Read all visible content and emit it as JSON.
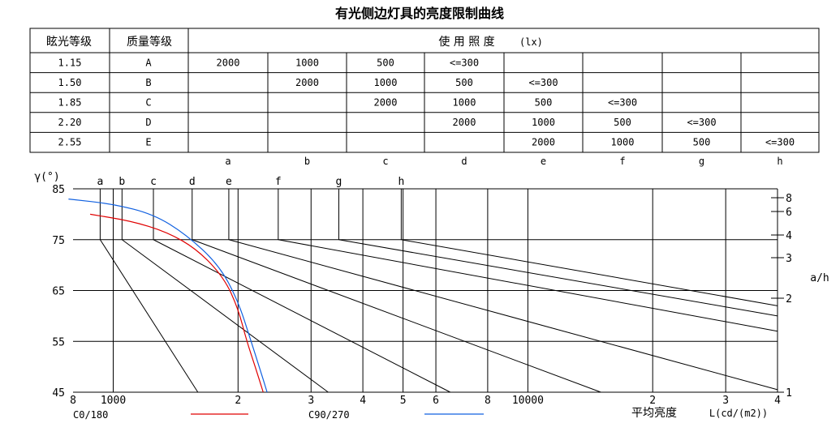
{
  "chart_data": {
    "type": "line",
    "title": "有光侧边灯具的亮度限制曲线",
    "table": {
      "headers": [
        "眩光等级",
        "质量等级",
        "使 用 照 度",
        "(lx)"
      ],
      "rows": [
        {
          "glare": "1.15",
          "quality": "A",
          "cells": [
            "2000",
            "1000",
            "500",
            "<=300",
            "",
            "",
            "",
            ""
          ]
        },
        {
          "glare": "1.50",
          "quality": "B",
          "cells": [
            "",
            "2000",
            "1000",
            "500",
            "<=300",
            "",
            "",
            ""
          ]
        },
        {
          "glare": "1.85",
          "quality": "C",
          "cells": [
            "",
            "",
            "2000",
            "1000",
            "500",
            "<=300",
            "",
            ""
          ]
        },
        {
          "glare": "2.20",
          "quality": "D",
          "cells": [
            "",
            "",
            "",
            "2000",
            "1000",
            "500",
            "<=300",
            ""
          ]
        },
        {
          "glare": "2.55",
          "quality": "E",
          "cells": [
            "",
            "",
            "",
            "",
            "2000",
            "1000",
            "500",
            "<=300"
          ]
        }
      ],
      "curve_letters": [
        "a",
        "b",
        "c",
        "d",
        "e",
        "f",
        "g",
        "h"
      ]
    },
    "y_axis": {
      "label": "γ(°)",
      "ticks": [
        "85",
        "75",
        "65",
        "55",
        "45"
      ],
      "ylim": [
        45,
        85
      ]
    },
    "x_axis": {
      "label": "平均亮度",
      "unit": "L(cd/(m2))",
      "scale": "log",
      "xlim": [
        800,
        40000
      ],
      "tick_labels": [
        {
          "value": 800,
          "label": "8"
        },
        {
          "value": 1000,
          "label": "1000"
        },
        {
          "value": 2000,
          "label": "2"
        },
        {
          "value": 3000,
          "label": "3"
        },
        {
          "value": 4000,
          "label": "4"
        },
        {
          "value": 5000,
          "label": "5"
        },
        {
          "value": 6000,
          "label": "6"
        },
        {
          "value": 8000,
          "label": "8"
        },
        {
          "value": 10000,
          "label": "10000"
        },
        {
          "value": 20000,
          "label": "2"
        },
        {
          "value": 30000,
          "label": "3"
        },
        {
          "value": 40000,
          "label": "4"
        }
      ]
    },
    "right_axis": {
      "label": "a/h",
      "ticks": [
        "8",
        "6",
        "4",
        "3",
        "2",
        "1"
      ]
    },
    "limit_curves": [
      {
        "name": "a",
        "L_at_75": 930,
        "L_at_45": 1600
      },
      {
        "name": "b",
        "L_at_75": 1050,
        "L_at_45": 3300
      },
      {
        "name": "c",
        "L_at_75": 1250,
        "L_at_45": 6500
      },
      {
        "name": "d",
        "L_at_75": 1550,
        "L_at_45": 15000
      },
      {
        "name": "e",
        "L_at_75": 1900,
        "L_at_45": 30000,
        "gamma_at_L_max": 45.5
      },
      {
        "name": "f",
        "L_at_75": 2500,
        "gamma_at_L_max": 57
      },
      {
        "name": "g",
        "L_at_75": 3500,
        "gamma_at_L_max": 60
      },
      {
        "name": "h",
        "L_at_75": 4950,
        "gamma_at_L_max": 62
      }
    ],
    "series": [
      {
        "name": "C0/180",
        "color": "#e00000",
        "points": [
          [
            880,
            80
          ],
          [
            1100,
            78.7
          ],
          [
            1350,
            76.5
          ],
          [
            1600,
            73
          ],
          [
            1850,
            67.5
          ],
          [
            2000,
            61.5
          ],
          [
            2100,
            55
          ],
          [
            2200,
            50
          ],
          [
            2300,
            45
          ]
        ]
      },
      {
        "name": "C90/270",
        "color": "#1060e0",
        "points": [
          [
            780,
            83
          ],
          [
            1000,
            82
          ],
          [
            1250,
            80
          ],
          [
            1500,
            76
          ],
          [
            1800,
            70
          ],
          [
            2000,
            63
          ],
          [
            2150,
            55
          ],
          [
            2250,
            50
          ],
          [
            2350,
            45
          ]
        ]
      }
    ],
    "legend_placement": "bottom",
    "grid": true
  }
}
